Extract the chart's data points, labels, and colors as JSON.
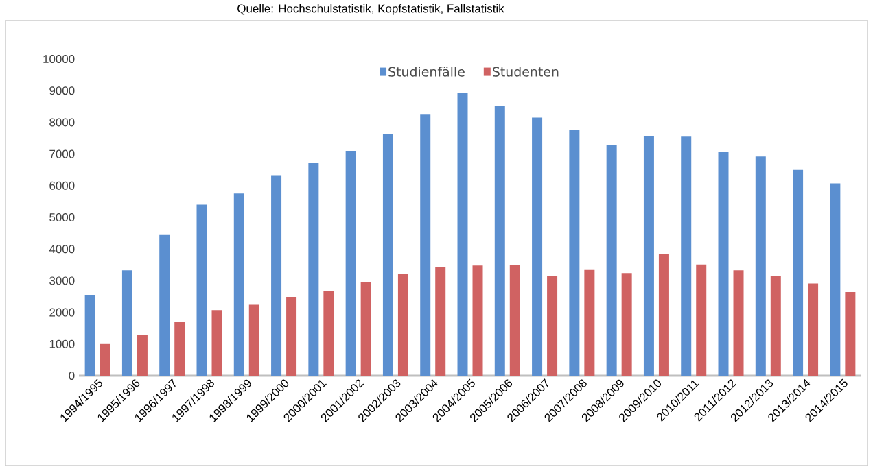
{
  "chart_data": {
    "type": "bar",
    "annotations": [
      "Quelle: Hochschulstatistik, Kopfstatistik, Fallstatistik"
    ],
    "categories": [
      "1994/1995",
      "1995/1996",
      "1996/1997",
      "1997/1998",
      "1998/1999",
      "1999/2000",
      "2000/2001",
      "2001/2002",
      "2002/2003",
      "2003/2004",
      "2004/2005",
      "2005/2006",
      "2006/2007",
      "2007/2008",
      "2008/2009",
      "2009/2010",
      "2010/2011",
      "2011/2012",
      "2012/2013",
      "2013/2014",
      "2014/2015"
    ],
    "series": [
      {
        "name": "Studienfälle",
        "color": "#5b8fd0",
        "values": [
          2540,
          3330,
          4440,
          5400,
          5750,
          6330,
          6710,
          7100,
          7640,
          8240,
          8920,
          8520,
          8150,
          7760,
          7270,
          7560,
          7550,
          7060,
          6920,
          6500,
          6070
        ]
      },
      {
        "name": "Studenten",
        "color": "#d06262",
        "values": [
          1000,
          1290,
          1700,
          2070,
          2240,
          2490,
          2680,
          2960,
          3210,
          3420,
          3480,
          3490,
          3150,
          3340,
          3240,
          3840,
          3510,
          3330,
          3160,
          2910,
          2640
        ]
      }
    ],
    "ylim": [
      0,
      10000
    ],
    "yticks": [
      0,
      1000,
      2000,
      3000,
      4000,
      5000,
      6000,
      7000,
      8000,
      9000,
      10000
    ],
    "grid": false,
    "legend": "top"
  }
}
